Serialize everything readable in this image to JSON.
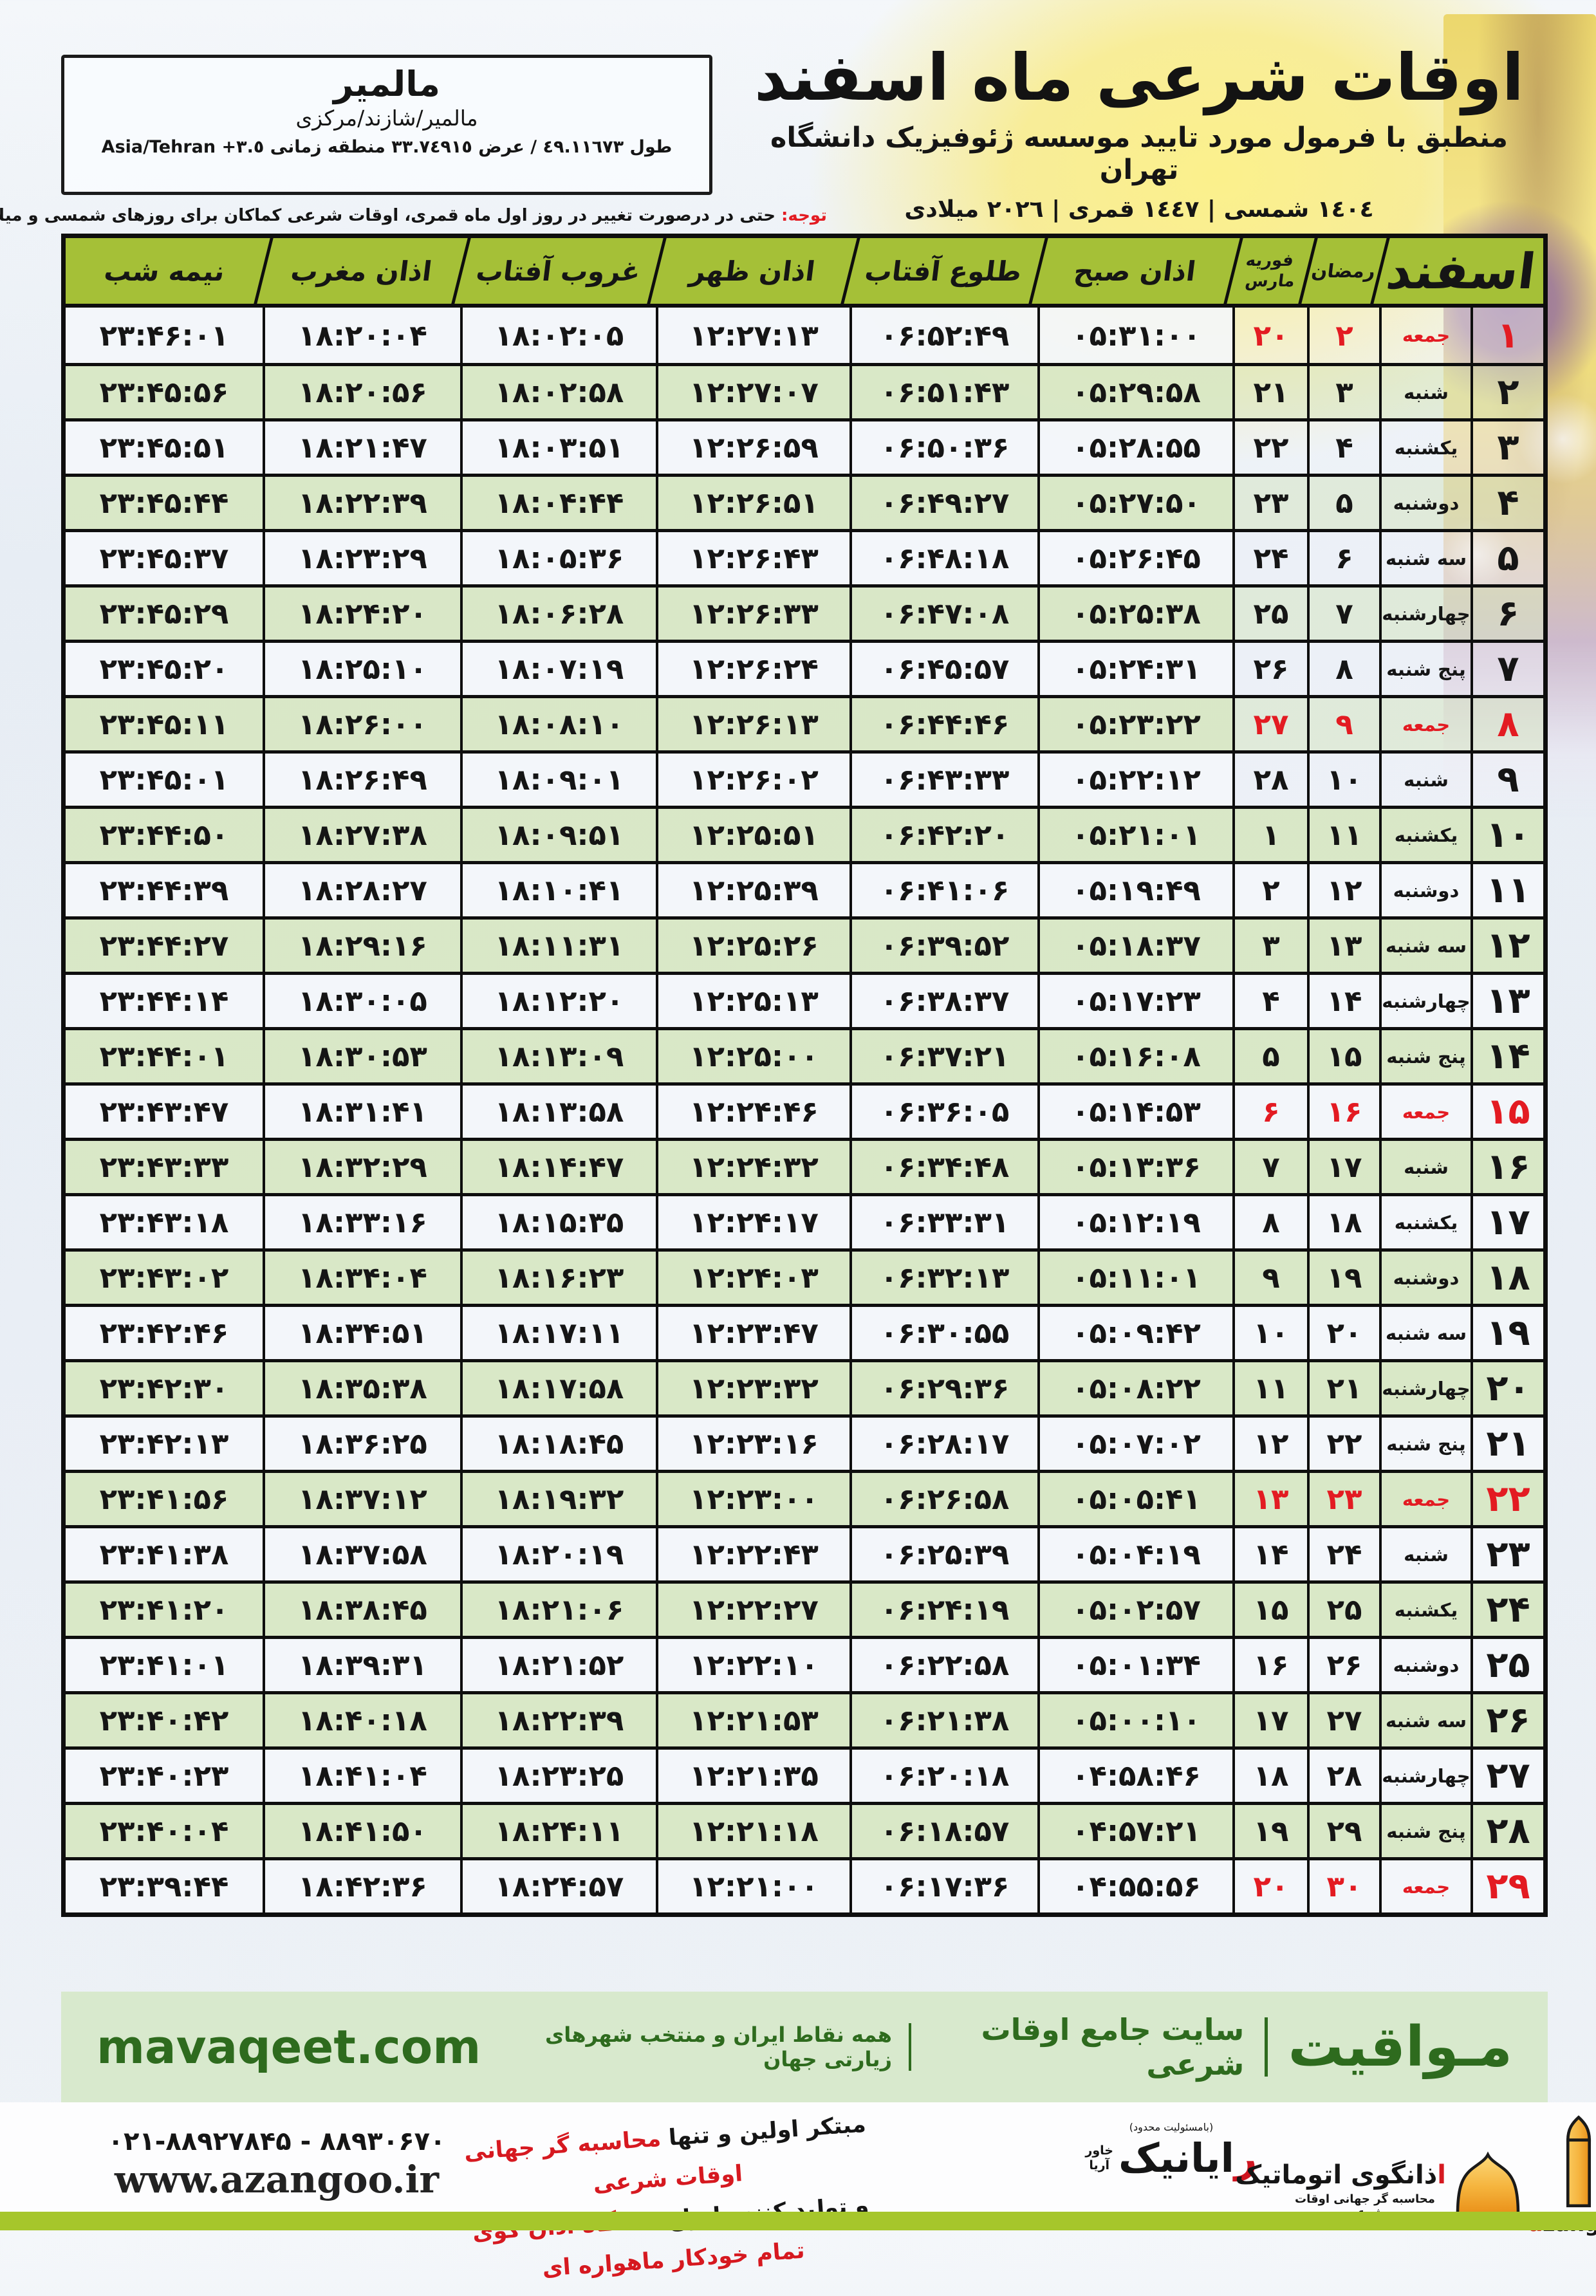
{
  "palette": {
    "header_green": "#a5c037",
    "row_green": "#d8e6c3",
    "row_light": "#f2f5fa",
    "friday_red": "#e31b22",
    "mavaqeet_green_bg": "#d8e9cd",
    "mavaqeet_green_text": "#2e6b1e",
    "bottom_bar_green": "#a6c62b"
  },
  "location_box": {
    "name": "مالمیر",
    "region": "مالمیر/شازند/مرکزی",
    "coords": "طول ٤٩.١١٦٧٣ / عرض ٣٣.٧٤٩١٥ منطقه زمانی",
    "timezone": "Asia/Tehran +٣.٥"
  },
  "title_block": {
    "title": "اوقات شرعی ماه اسفند",
    "subtitle": "منطبق با فرمول مورد تایید موسسه ژئوفیزیک دانشگاه تهران",
    "dates": "١٤٠٤ شمسی | ١٤٤٧ قمری | ٢٠٢٦ میلادی"
  },
  "notice": {
    "label": "توجه:",
    "text": " حتی در درصورت تغییر در روز اول ماه قمری، اوقات شرعی کماکان برای روزهای شمسی و میلادی معتبر است."
  },
  "table": {
    "headers": {
      "month": "اسفند",
      "ramadan": "رمضان",
      "feb": "فوریه",
      "mar": "مارس",
      "sobh": "اذان صبح",
      "tolu": "طلوع آفتاب",
      "zohr": "اذان ظهر",
      "ghorub": "غروب آفتاب",
      "maghreb": "اذان مغرب",
      "nime": "نیمه شب"
    },
    "row_fields": [
      "esfand_day",
      "weekday",
      "ramadan_day",
      "feb_mar_day",
      "azan_sobh",
      "tolu_aftab",
      "azan_zohr",
      "ghorub_aftab",
      "azan_maghreb",
      "nime_shab",
      "is_friday"
    ],
    "rows": [
      [
        "۱",
        "جمعه",
        "۲",
        "۲۰",
        "۰۵:۳۱:۰۰",
        "۰۶:۵۲:۴۹",
        "۱۲:۲۷:۱۳",
        "۱۸:۰۲:۰۵",
        "۱۸:۲۰:۰۴",
        "۲۳:۴۶:۰۱",
        true
      ],
      [
        "۲",
        "شنبه",
        "۳",
        "۲۱",
        "۰۵:۲۹:۵۸",
        "۰۶:۵۱:۴۳",
        "۱۲:۲۷:۰۷",
        "۱۸:۰۲:۵۸",
        "۱۸:۲۰:۵۶",
        "۲۳:۴۵:۵۶",
        false
      ],
      [
        "۳",
        "یکشنبه",
        "۴",
        "۲۲",
        "۰۵:۲۸:۵۵",
        "۰۶:۵۰:۳۶",
        "۱۲:۲۶:۵۹",
        "۱۸:۰۳:۵۱",
        "۱۸:۲۱:۴۷",
        "۲۳:۴۵:۵۱",
        false
      ],
      [
        "۴",
        "دوشنبه",
        "۵",
        "۲۳",
        "۰۵:۲۷:۵۰",
        "۰۶:۴۹:۲۷",
        "۱۲:۲۶:۵۱",
        "۱۸:۰۴:۴۴",
        "۱۸:۲۲:۳۹",
        "۲۳:۴۵:۴۴",
        false
      ],
      [
        "۵",
        "سه شنبه",
        "۶",
        "۲۴",
        "۰۵:۲۶:۴۵",
        "۰۶:۴۸:۱۸",
        "۱۲:۲۶:۴۳",
        "۱۸:۰۵:۳۶",
        "۱۸:۲۳:۲۹",
        "۲۳:۴۵:۳۷",
        false
      ],
      [
        "۶",
        "چهارشنبه",
        "۷",
        "۲۵",
        "۰۵:۲۵:۳۸",
        "۰۶:۴۷:۰۸",
        "۱۲:۲۶:۳۳",
        "۱۸:۰۶:۲۸",
        "۱۸:۲۴:۲۰",
        "۲۳:۴۵:۲۹",
        false
      ],
      [
        "۷",
        "پنج شنبه",
        "۸",
        "۲۶",
        "۰۵:۲۴:۳۱",
        "۰۶:۴۵:۵۷",
        "۱۲:۲۶:۲۴",
        "۱۸:۰۷:۱۹",
        "۱۸:۲۵:۱۰",
        "۲۳:۴۵:۲۰",
        false
      ],
      [
        "۸",
        "جمعه",
        "۹",
        "۲۷",
        "۰۵:۲۳:۲۲",
        "۰۶:۴۴:۴۶",
        "۱۲:۲۶:۱۳",
        "۱۸:۰۸:۱۰",
        "۱۸:۲۶:۰۰",
        "۲۳:۴۵:۱۱",
        true
      ],
      [
        "۹",
        "شنبه",
        "۱۰",
        "۲۸",
        "۰۵:۲۲:۱۲",
        "۰۶:۴۳:۳۳",
        "۱۲:۲۶:۰۲",
        "۱۸:۰۹:۰۱",
        "۱۸:۲۶:۴۹",
        "۲۳:۴۵:۰۱",
        false
      ],
      [
        "۱۰",
        "یکشنبه",
        "۱۱",
        "۱",
        "۰۵:۲۱:۰۱",
        "۰۶:۴۲:۲۰",
        "۱۲:۲۵:۵۱",
        "۱۸:۰۹:۵۱",
        "۱۸:۲۷:۳۸",
        "۲۳:۴۴:۵۰",
        false
      ],
      [
        "۱۱",
        "دوشنبه",
        "۱۲",
        "۲",
        "۰۵:۱۹:۴۹",
        "۰۶:۴۱:۰۶",
        "۱۲:۲۵:۳۹",
        "۱۸:۱۰:۴۱",
        "۱۸:۲۸:۲۷",
        "۲۳:۴۴:۳۹",
        false
      ],
      [
        "۱۲",
        "سه شنبه",
        "۱۳",
        "۳",
        "۰۵:۱۸:۳۷",
        "۰۶:۳۹:۵۲",
        "۱۲:۲۵:۲۶",
        "۱۸:۱۱:۳۱",
        "۱۸:۲۹:۱۶",
        "۲۳:۴۴:۲۷",
        false
      ],
      [
        "۱۳",
        "چهارشنبه",
        "۱۴",
        "۴",
        "۰۵:۱۷:۲۳",
        "۰۶:۳۸:۳۷",
        "۱۲:۲۵:۱۳",
        "۱۸:۱۲:۲۰",
        "۱۸:۳۰:۰۵",
        "۲۳:۴۴:۱۴",
        false
      ],
      [
        "۱۴",
        "پنج شنبه",
        "۱۵",
        "۵",
        "۰۵:۱۶:۰۸",
        "۰۶:۳۷:۲۱",
        "۱۲:۲۵:۰۰",
        "۱۸:۱۳:۰۹",
        "۱۸:۳۰:۵۳",
        "۲۳:۴۴:۰۱",
        false
      ],
      [
        "۱۵",
        "جمعه",
        "۱۶",
        "۶",
        "۰۵:۱۴:۵۳",
        "۰۶:۳۶:۰۵",
        "۱۲:۲۴:۴۶",
        "۱۸:۱۳:۵۸",
        "۱۸:۳۱:۴۱",
        "۲۳:۴۳:۴۷",
        true
      ],
      [
        "۱۶",
        "شنبه",
        "۱۷",
        "۷",
        "۰۵:۱۳:۳۶",
        "۰۶:۳۴:۴۸",
        "۱۲:۲۴:۳۲",
        "۱۸:۱۴:۴۷",
        "۱۸:۳۲:۲۹",
        "۲۳:۴۳:۳۳",
        false
      ],
      [
        "۱۷",
        "یکشنبه",
        "۱۸",
        "۸",
        "۰۵:۱۲:۱۹",
        "۰۶:۳۳:۳۱",
        "۱۲:۲۴:۱۷",
        "۱۸:۱۵:۳۵",
        "۱۸:۳۳:۱۶",
        "۲۳:۴۳:۱۸",
        false
      ],
      [
        "۱۸",
        "دوشنبه",
        "۱۹",
        "۹",
        "۰۵:۱۱:۰۱",
        "۰۶:۳۲:۱۳",
        "۱۲:۲۴:۰۳",
        "۱۸:۱۶:۲۳",
        "۱۸:۳۴:۰۴",
        "۲۳:۴۳:۰۲",
        false
      ],
      [
        "۱۹",
        "سه شنبه",
        "۲۰",
        "۱۰",
        "۰۵:۰۹:۴۲",
        "۰۶:۳۰:۵۵",
        "۱۲:۲۳:۴۷",
        "۱۸:۱۷:۱۱",
        "۱۸:۳۴:۵۱",
        "۲۳:۴۲:۴۶",
        false
      ],
      [
        "۲۰",
        "چهارشنبه",
        "۲۱",
        "۱۱",
        "۰۵:۰۸:۲۲",
        "۰۶:۲۹:۳۶",
        "۱۲:۲۳:۳۲",
        "۱۸:۱۷:۵۸",
        "۱۸:۳۵:۳۸",
        "۲۳:۴۲:۳۰",
        false
      ],
      [
        "۲۱",
        "پنج شنبه",
        "۲۲",
        "۱۲",
        "۰۵:۰۷:۰۲",
        "۰۶:۲۸:۱۷",
        "۱۲:۲۳:۱۶",
        "۱۸:۱۸:۴۵",
        "۱۸:۳۶:۲۵",
        "۲۳:۴۲:۱۳",
        false
      ],
      [
        "۲۲",
        "جمعه",
        "۲۳",
        "۱۳",
        "۰۵:۰۵:۴۱",
        "۰۶:۲۶:۵۸",
        "۱۲:۲۳:۰۰",
        "۱۸:۱۹:۳۲",
        "۱۸:۳۷:۱۲",
        "۲۳:۴۱:۵۶",
        true
      ],
      [
        "۲۳",
        "شنبه",
        "۲۴",
        "۱۴",
        "۰۵:۰۴:۱۹",
        "۰۶:۲۵:۳۹",
        "۱۲:۲۲:۴۳",
        "۱۸:۲۰:۱۹",
        "۱۸:۳۷:۵۸",
        "۲۳:۴۱:۳۸",
        false
      ],
      [
        "۲۴",
        "یکشنبه",
        "۲۵",
        "۱۵",
        "۰۵:۰۲:۵۷",
        "۰۶:۲۴:۱۹",
        "۱۲:۲۲:۲۷",
        "۱۸:۲۱:۰۶",
        "۱۸:۳۸:۴۵",
        "۲۳:۴۱:۲۰",
        false
      ],
      [
        "۲۵",
        "دوشنبه",
        "۲۶",
        "۱۶",
        "۰۵:۰۱:۳۴",
        "۰۶:۲۲:۵۸",
        "۱۲:۲۲:۱۰",
        "۱۸:۲۱:۵۲",
        "۱۸:۳۹:۳۱",
        "۲۳:۴۱:۰۱",
        false
      ],
      [
        "۲۶",
        "سه شنبه",
        "۲۷",
        "۱۷",
        "۰۵:۰۰:۱۰",
        "۰۶:۲۱:۳۸",
        "۱۲:۲۱:۵۳",
        "۱۸:۲۲:۳۹",
        "۱۸:۴۰:۱۸",
        "۲۳:۴۰:۴۲",
        false
      ],
      [
        "۲۷",
        "چهارشنبه",
        "۲۸",
        "۱۸",
        "۰۴:۵۸:۴۶",
        "۰۶:۲۰:۱۸",
        "۱۲:۲۱:۳۵",
        "۱۸:۲۳:۲۵",
        "۱۸:۴۱:۰۴",
        "۲۳:۴۰:۲۳",
        false
      ],
      [
        "۲۸",
        "پنج شنبه",
        "۲۹",
        "۱۹",
        "۰۴:۵۷:۲۱",
        "۰۶:۱۸:۵۷",
        "۱۲:۲۱:۱۸",
        "۱۸:۲۴:۱۱",
        "۱۸:۴۱:۵۰",
        "۲۳:۴۰:۰۴",
        false
      ],
      [
        "۲۹",
        "جمعه",
        "۳۰",
        "۲۰",
        "۰۴:۵۵:۵۶",
        "۰۶:۱۷:۳۶",
        "۱۲:۲۱:۰۰",
        "۱۸:۲۴:۵۷",
        "۱۸:۴۲:۳۶",
        "۲۳:۳۹:۴۴",
        true
      ]
    ]
  },
  "mavaqeet": {
    "brand": "مـواقیت",
    "site": "سایت جامع اوقات شرعی",
    "coverage": "همه نقاط ایران و منتخب شهرهای زیارتی جهان",
    "domain": "mavaqeet.com"
  },
  "footer": {
    "phone": "۰۲۱-۸۸۹۲۷۸۴۵ - ۸۸۹۳۰۶۷۰",
    "website": "www.azangoo.ir",
    "line1_black": "مبتکر اولین و تنها ",
    "line1_red": "محاسبه گر جهانی اوقات شرعی",
    "line2_black": "و تولید کننده انواع ",
    "line2_red": "دستگاه اذان گوی تمام خودکار ماهواره ای",
    "rayanik_note": "(بامسئولیت محدود)",
    "rayanik_first": "ر",
    "rayanik_rest": "ایانیک",
    "rayanik_sub1": "خاور",
    "rayanik_sub2": "آریا",
    "azangoo_fa_first": "ا",
    "azangoo_fa_rest": "ذانگوی اتوماتیک",
    "azangoo_fa_sub": "محاسبه گر جهانی اوقات شرعی",
    "azangoo_en_a": "a",
    "azangoo_en_rest": "zangoo"
  }
}
